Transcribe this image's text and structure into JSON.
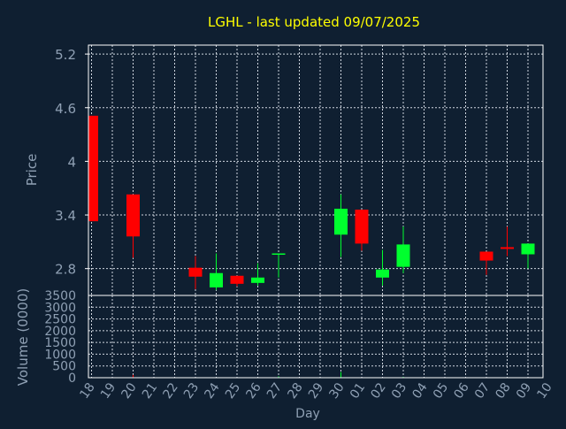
{
  "title": "LGHL - last updated 09/07/2025",
  "colors": {
    "background": "#0f1f31",
    "frame": "#ffffff",
    "grid": "#cfd6df",
    "title": "#ffff00",
    "axis_text": "#8fa0b4",
    "up": "#00ff2e",
    "down": "#ff0000"
  },
  "chart_data": [
    {
      "type": "candlestick",
      "ylabel": "Price",
      "ylim": [
        2.5,
        5.3
      ],
      "yticks": [
        2.8,
        3.4,
        4,
        4.6,
        5.2
      ],
      "ytick_labels": [
        "2.8",
        "3.4",
        "4",
        "4.6",
        "5.2"
      ],
      "grid": true,
      "categories": [
        "18",
        "19",
        "20",
        "21",
        "22",
        "23",
        "24",
        "25",
        "26",
        "27",
        "28",
        "29",
        "30",
        "01",
        "02",
        "03",
        "04",
        "05",
        "06",
        "07",
        "08",
        "09",
        "10"
      ],
      "candles": [
        {
          "x": "18",
          "open": 4.51,
          "high": 4.51,
          "low": 3.33,
          "close": 3.33
        },
        {
          "x": "20",
          "open": 3.63,
          "high": 3.63,
          "low": 2.92,
          "close": 3.16
        },
        {
          "x": "23",
          "open": 2.81,
          "high": 2.94,
          "low": 2.57,
          "close": 2.71
        },
        {
          "x": "24",
          "open": 2.59,
          "high": 2.97,
          "low": 2.56,
          "close": 2.75
        },
        {
          "x": "25",
          "open": 2.72,
          "high": 2.72,
          "low": 2.6,
          "close": 2.63
        },
        {
          "x": "26",
          "open": 2.64,
          "high": 2.86,
          "low": 2.61,
          "close": 2.7
        },
        {
          "x": "27",
          "open": 2.96,
          "high": 2.97,
          "low": 2.7,
          "close": 2.97
        },
        {
          "x": "30",
          "open": 3.18,
          "high": 3.63,
          "low": 2.93,
          "close": 3.47
        },
        {
          "x": "01",
          "open": 3.46,
          "high": 3.46,
          "low": 3.0,
          "close": 3.08
        },
        {
          "x": "02",
          "open": 2.7,
          "high": 3.01,
          "low": 2.61,
          "close": 2.79
        },
        {
          "x": "03",
          "open": 2.82,
          "high": 3.27,
          "low": 2.75,
          "close": 3.07
        },
        {
          "x": "07",
          "open": 2.99,
          "high": 2.99,
          "low": 2.73,
          "close": 2.89
        },
        {
          "x": "08",
          "open": 3.04,
          "high": 3.27,
          "low": 2.94,
          "close": 3.02
        },
        {
          "x": "09",
          "open": 2.96,
          "high": 3.08,
          "low": 2.8,
          "close": 3.08
        }
      ]
    },
    {
      "type": "bar",
      "xlabel": "Day",
      "ylabel": "Volume (0000)",
      "ylim": [
        0,
        3500
      ],
      "yticks": [
        0,
        500,
        1000,
        1500,
        2000,
        2500,
        3000,
        3500
      ],
      "ytick_labels": [
        "0",
        "500",
        "1000",
        "1500",
        "2000",
        "2500",
        "3000",
        "3500"
      ],
      "grid": true,
      "categories": [
        "18",
        "19",
        "20",
        "21",
        "22",
        "23",
        "24",
        "25",
        "26",
        "27",
        "28",
        "29",
        "30",
        "01",
        "02",
        "03",
        "04",
        "05",
        "06",
        "07",
        "08",
        "09",
        "10"
      ],
      "values": [
        {
          "x": "20",
          "value": 120,
          "direction": "down"
        },
        {
          "x": "27",
          "value": 60,
          "direction": "up"
        },
        {
          "x": "30",
          "value": 240,
          "direction": "up"
        },
        {
          "x": "03",
          "value": 40,
          "direction": "up"
        }
      ]
    }
  ]
}
